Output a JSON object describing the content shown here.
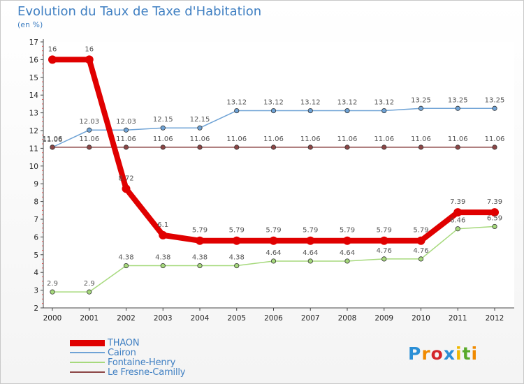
{
  "title": "Evolution du Taux de Taxe d'Habitation",
  "subtitle": "(en %)",
  "logo": {
    "text": "Proxiti",
    "letters": [
      {
        "ch": "P",
        "color": "#2b8fd6"
      },
      {
        "ch": "r",
        "color": "#f08a00"
      },
      {
        "ch": "o",
        "color": "#d4262b"
      },
      {
        "ch": "x",
        "color": "#2b8fd6"
      },
      {
        "ch": "i",
        "color": "#f0b800"
      },
      {
        "ch": "t",
        "color": "#5aaa2a"
      },
      {
        "ch": "i",
        "color": "#f08a00"
      }
    ]
  },
  "chart_data": {
    "type": "line",
    "title": "Evolution du Taux de Taxe d'Habitation",
    "ylabel": "(en %)",
    "xlabel": "",
    "ylim": [
      2,
      17
    ],
    "yticks": [
      "2",
      "3",
      "4",
      "5",
      "6",
      "7",
      "8",
      "9",
      "10",
      "11",
      "12",
      "13",
      "14",
      "15",
      "16",
      "17"
    ],
    "categories": [
      "2000",
      "2001",
      "2002",
      "2003",
      "2004",
      "2005",
      "2006",
      "2007",
      "2008",
      "2009",
      "2010",
      "2011",
      "2012"
    ],
    "series": [
      {
        "name": "THAON",
        "color": "#e00000",
        "values": [
          16,
          16,
          8.72,
          6.1,
          5.79,
          5.79,
          5.79,
          5.79,
          5.79,
          5.79,
          5.79,
          7.39,
          7.39
        ],
        "labels": [
          "16",
          "16",
          "8.72",
          "6.1",
          "5.79",
          "5.79",
          "5.79",
          "5.79",
          "5.79",
          "5.79",
          "5.79",
          "7.39",
          "7.39"
        ]
      },
      {
        "name": "Cairon",
        "color": "#6fa3d6",
        "values": [
          11.06,
          12.03,
          12.03,
          12.15,
          12.15,
          13.12,
          13.12,
          13.12,
          13.12,
          13.12,
          13.25,
          13.25,
          13.25
        ],
        "labels": [
          "11.06",
          "12.03",
          "12.03",
          "12.15",
          "12.15",
          "13.12",
          "13.12",
          "13.12",
          "13.12",
          "13.12",
          "13.25",
          "13.25",
          "13.25"
        ]
      },
      {
        "name": "Fontaine-Henry",
        "color": "#a6d97c",
        "values": [
          2.9,
          2.9,
          4.38,
          4.38,
          4.38,
          4.38,
          4.64,
          4.64,
          4.64,
          4.76,
          4.76,
          6.46,
          6.59
        ],
        "labels": [
          "2.9",
          "2.9",
          "4.38",
          "4.38",
          "4.38",
          "4.38",
          "4.64",
          "4.64",
          "4.64",
          "4.76",
          "4.76",
          "6.46",
          "6.59"
        ]
      },
      {
        "name": "Le Fresne-Camilly",
        "color": "#8c4646",
        "values": [
          11.06,
          11.06,
          11.06,
          11.06,
          11.06,
          11.06,
          11.06,
          11.06,
          11.06,
          11.06,
          11.06,
          11.06,
          11.06
        ],
        "labels": [
          "11.06",
          "11.06",
          "11.06",
          "11.06",
          "11.06",
          "11.06",
          "11.06",
          "11.06",
          "11.06",
          "11.06",
          "11.06",
          "11.06",
          "11.06"
        ]
      }
    ]
  }
}
